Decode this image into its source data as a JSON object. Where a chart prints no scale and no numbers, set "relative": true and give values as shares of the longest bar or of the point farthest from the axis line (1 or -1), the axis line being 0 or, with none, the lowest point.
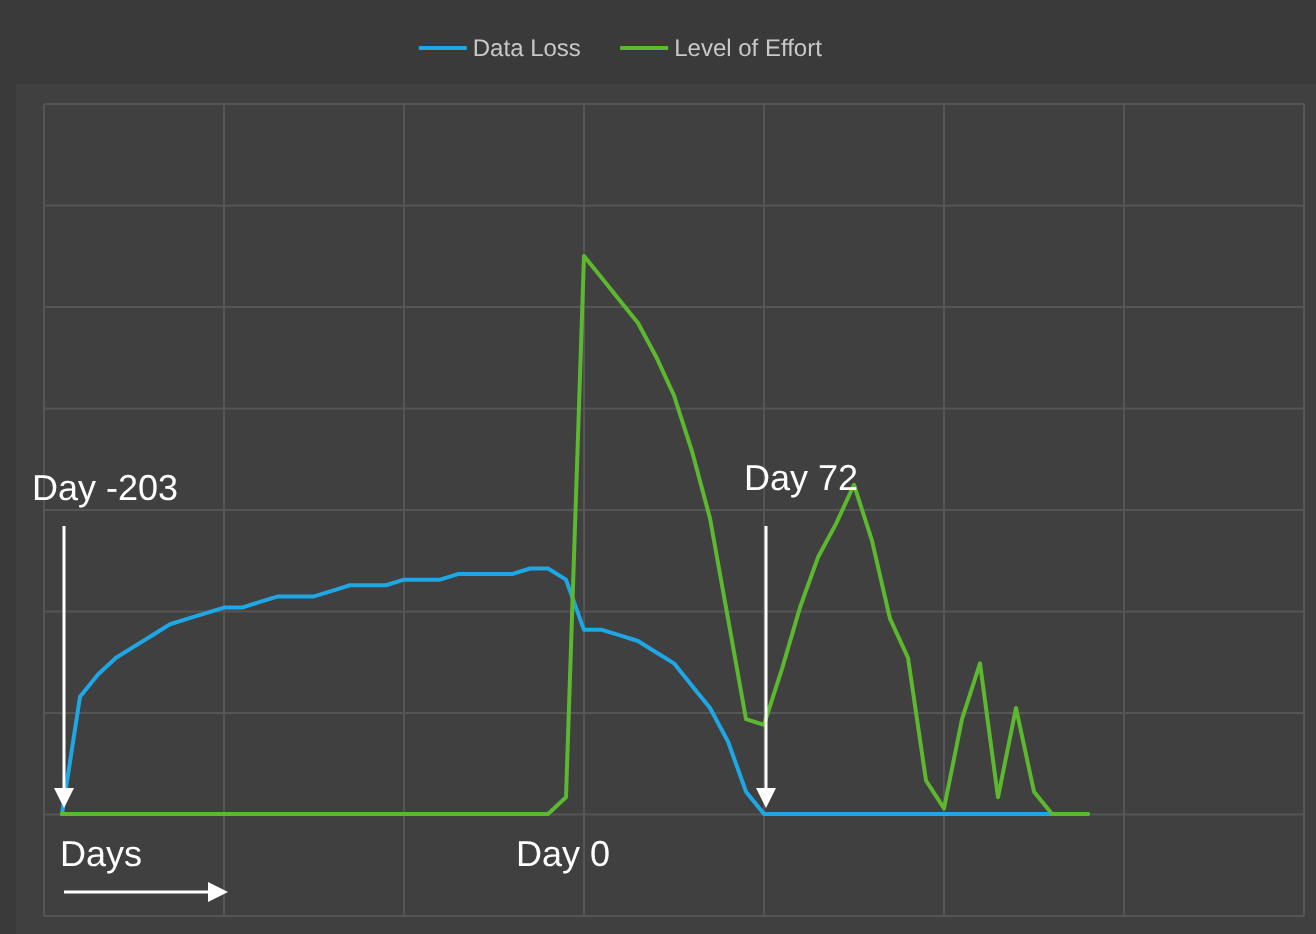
{
  "chart_data": {
    "type": "line",
    "relative": true,
    "legend": "top",
    "grid": true,
    "categories": [
      null,
      null,
      null,
      null,
      null,
      null,
      null,
      null,
      null,
      null,
      null,
      null,
      null,
      null,
      null,
      null,
      null,
      null,
      null,
      null,
      null,
      null,
      null,
      null,
      null,
      null,
      null,
      null,
      null,
      null,
      null,
      null,
      null,
      null,
      null,
      null,
      null,
      null,
      null,
      null,
      null,
      null,
      null,
      null,
      null,
      null,
      null,
      null,
      null,
      null,
      null,
      null,
      null,
      null,
      null,
      null,
      null,
      null
    ],
    "series": [
      {
        "name": "Data Loss",
        "color": "#1ea7e4",
        "values": [
          0,
          0.21,
          0.25,
          0.28,
          0.3,
          0.32,
          0.34,
          0.35,
          0.36,
          0.37,
          0.37,
          0.38,
          0.39,
          0.39,
          0.39,
          0.4,
          0.41,
          0.41,
          0.41,
          0.42,
          0.42,
          0.42,
          0.43,
          0.43,
          0.43,
          0.43,
          0.44,
          0.44,
          0.42,
          0.33,
          0.33,
          0.32,
          0.31,
          0.29,
          0.27,
          0.23,
          0.19,
          0.13,
          0.04,
          0,
          0,
          0,
          0,
          0,
          0,
          0,
          0,
          0,
          0,
          0,
          0,
          0,
          0,
          0,
          0,
          0,
          0,
          0
        ]
      },
      {
        "name": "Level of Effort",
        "color": "#5cb82e",
        "values": [
          0,
          0,
          0,
          0,
          0,
          0,
          0,
          0,
          0,
          0,
          0,
          0,
          0,
          0,
          0,
          0,
          0,
          0,
          0,
          0,
          0,
          0,
          0,
          0,
          0,
          0,
          0,
          0,
          0.03,
          1.0,
          0.96,
          0.92,
          0.88,
          0.82,
          0.75,
          0.65,
          0.53,
          0.35,
          0.17,
          0.16,
          0.26,
          0.37,
          0.46,
          0.52,
          0.59,
          0.49,
          0.35,
          0.28,
          0.06,
          0.01,
          0.17,
          0.27,
          0.03,
          0.19,
          0.04,
          0,
          0,
          0
        ]
      }
    ],
    "annotations": [
      "Day -203",
      "Day 72",
      "Day 0",
      "Days"
    ]
  }
}
